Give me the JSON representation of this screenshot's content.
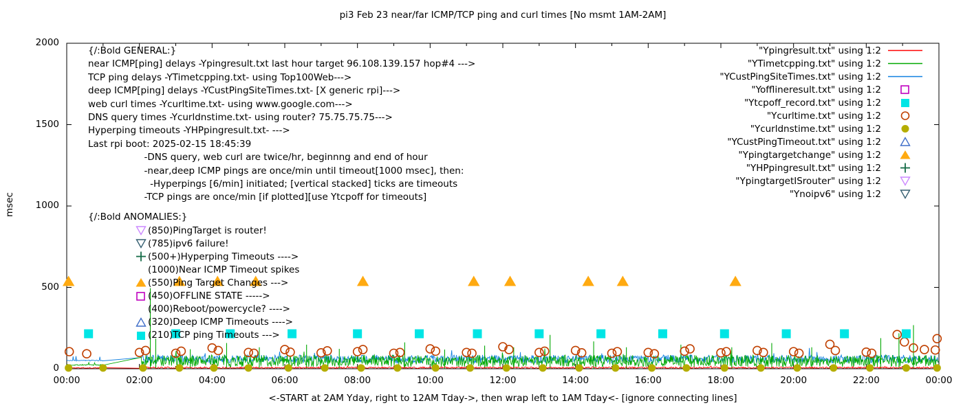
{
  "chart_data": {
    "type": "line",
    "title": "pi3 Feb 23  near/far ICMP/TCP ping and curl times [No msmt 1AM-2AM]",
    "xlabel": "<-START at 2AM Yday, right to 12AM Tday->, then wrap left to 1AM Tday<- [ignore connecting lines]",
    "ylabel": "msec",
    "x_axis": {
      "tick_labels": [
        "00:00",
        "02:00",
        "04:00",
        "06:00",
        "08:00",
        "10:00",
        "12:00",
        "14:00",
        "16:00",
        "18:00",
        "20:00",
        "22:00",
        "00:00"
      ],
      "hours_range": [
        0,
        24
      ],
      "grid": false
    },
    "y_axis": {
      "ticks": [
        "0",
        "500",
        "1000",
        "1500",
        "2000"
      ],
      "tick_values": [
        0,
        500,
        1000,
        1500,
        2000
      ],
      "range": [
        0,
        2000
      ]
    },
    "legend_position": "top-right",
    "legend": [
      {
        "label": "\"Ypingresult.txt\" using 1:2",
        "marker": "line",
        "color": "#ff0000"
      },
      {
        "label": "\"YTimetcpping.txt\" using 1:2",
        "marker": "line",
        "color": "#00a800"
      },
      {
        "label": "\"YCustPingSiteTimes.txt\" using 1:2",
        "marker": "line",
        "color": "#1080e0"
      },
      {
        "label": "\"Yofflineresult.txt\" using 1:2",
        "marker": "square-open",
        "color": "#bf00bf"
      },
      {
        "label": "\"Ytcpoff_record.txt\" using 1:2",
        "marker": "square-filled",
        "color": "#00e5e5"
      },
      {
        "label": "\"Ycurltime.txt\" using 1:2",
        "marker": "circle-open",
        "color": "#c04000"
      },
      {
        "label": "\"Ycurldnstime.txt\" using 1:2",
        "marker": "circle-filled",
        "color": "#b5ad00"
      },
      {
        "label": "\"YCustPingTimeout.txt\" using 1:2",
        "marker": "triangle-up-open",
        "color": "#3f6ec8"
      },
      {
        "label": "\"Ypingtargetchange\" using 1:2",
        "marker": "triangle-up-filled",
        "color": "#ffaa11"
      },
      {
        "label": "\"YHPpingresult.txt\" using 1:2",
        "marker": "plus",
        "color": "#156b47"
      },
      {
        "label": "\"YpingtargetISrouter\" using 1:2",
        "marker": "triangle-down-open",
        "color": "#cc88ff"
      },
      {
        "label": "\"Ynoipv6\" using 1:2",
        "marker": "triangle-down-open",
        "color": "#355f71"
      }
    ],
    "series": [
      {
        "name": "YCustPingSiteTimes.txt",
        "style": "noisy-line",
        "color": "#1080e0",
        "seed": 3,
        "noise": [
          {
            "start": 0,
            "end": 1,
            "min": 48,
            "max": 53
          },
          {
            "start": 2.05,
            "end": 24,
            "min": 35,
            "max": 85
          }
        ]
      },
      {
        "name": "YTimetcpping.txt",
        "style": "noisy-line",
        "color": "#00a800",
        "seed": 7,
        "noise": [
          {
            "start": 0,
            "end": 1,
            "min": 20,
            "max": 27
          },
          {
            "start": 2.05,
            "end": 24,
            "min": 12,
            "max": 85
          }
        ],
        "spikes": [
          [
            2.3,
            495
          ],
          [
            2.45,
            185
          ],
          [
            3.4,
            120
          ],
          [
            4.4,
            158
          ],
          [
            5.3,
            132
          ],
          [
            6.6,
            148
          ],
          [
            7.5,
            122
          ],
          [
            9.3,
            162
          ],
          [
            10.4,
            118
          ],
          [
            11.5,
            142
          ],
          [
            12.3,
            132
          ],
          [
            13.3,
            208
          ],
          [
            14.5,
            168
          ],
          [
            15.4,
            132
          ],
          [
            16.9,
            148
          ],
          [
            18.3,
            132
          ],
          [
            19.4,
            158
          ],
          [
            20.5,
            132
          ],
          [
            22.4,
            188
          ],
          [
            22.9,
            218
          ],
          [
            23.3,
            268
          ]
        ]
      },
      {
        "name": "Ypingresult.txt",
        "style": "noisy-line",
        "color": "#ff0000",
        "seed": 11,
        "noise": [
          {
            "start": 0,
            "end": 1,
            "min": 2,
            "max": 8
          },
          {
            "start": 2.05,
            "end": 24,
            "min": 2,
            "max": 11
          }
        ]
      },
      {
        "name": "Ycurldnstime.txt",
        "style": "points",
        "marker": "circle-filled",
        "color": "#b5ad00",
        "value": 5,
        "hours": [
          0.05,
          1.0,
          2.1,
          3.1,
          4.05,
          5.0,
          6.1,
          7.1,
          8.1,
          9.1,
          10.15,
          11.1,
          12.1,
          13.1,
          14.1,
          15.1,
          16.1,
          17.05,
          18.1,
          19.1,
          20.1,
          21.1,
          22.1,
          23.1,
          23.95
        ]
      },
      {
        "name": "Ycurltime.txt",
        "style": "points",
        "marker": "circle-open",
        "color": "#c04000",
        "points": [
          [
            0.07,
            105
          ],
          [
            0.55,
            92
          ],
          [
            2.0,
            100
          ],
          [
            2.17,
            112
          ],
          [
            3.0,
            95
          ],
          [
            3.15,
            108
          ],
          [
            4.0,
            128
          ],
          [
            4.17,
            112
          ],
          [
            5.0,
            100
          ],
          [
            5.15,
            95
          ],
          [
            6.0,
            118
          ],
          [
            6.15,
            102
          ],
          [
            7.0,
            98
          ],
          [
            7.17,
            110
          ],
          [
            8.0,
            105
          ],
          [
            8.15,
            118
          ],
          [
            9.0,
            95
          ],
          [
            9.17,
            100
          ],
          [
            10.0,
            122
          ],
          [
            10.15,
            108
          ],
          [
            11.0,
            100
          ],
          [
            11.15,
            95
          ],
          [
            12.0,
            135
          ],
          [
            12.17,
            118
          ],
          [
            13.0,
            100
          ],
          [
            13.15,
            108
          ],
          [
            14.0,
            112
          ],
          [
            14.17,
            98
          ],
          [
            15.0,
            95
          ],
          [
            15.15,
            105
          ],
          [
            16.0,
            100
          ],
          [
            16.17,
            92
          ],
          [
            17.0,
            108
          ],
          [
            17.15,
            122
          ],
          [
            18.0,
            98
          ],
          [
            18.15,
            105
          ],
          [
            19.0,
            112
          ],
          [
            19.17,
            100
          ],
          [
            20.0,
            105
          ],
          [
            20.15,
            95
          ],
          [
            21.0,
            150
          ],
          [
            21.15,
            112
          ],
          [
            22.0,
            102
          ],
          [
            22.15,
            95
          ],
          [
            22.85,
            210
          ],
          [
            23.05,
            165
          ],
          [
            23.3,
            128
          ],
          [
            23.6,
            118
          ],
          [
            23.9,
            115
          ],
          [
            23.95,
            185
          ]
        ]
      },
      {
        "name": "Ytcpoff_record.txt",
        "style": "points",
        "marker": "square-filled",
        "color": "#00e5e5",
        "value": 215,
        "hours": [
          0.6,
          3.0,
          4.5,
          6.2,
          8.0,
          9.7,
          11.3,
          13.0,
          14.7,
          16.4,
          18.1,
          19.8,
          21.4,
          23.1
        ]
      },
      {
        "name": "Ypingtargetchange",
        "style": "points",
        "marker": "triangle-up-filled",
        "color": "#ffaa11",
        "value": 535,
        "hours": [
          0.05,
          3.1,
          4.15,
          5.2,
          8.15,
          11.2,
          12.2,
          14.35,
          15.3,
          18.4
        ]
      },
      {
        "name": "Yofflineresult.txt",
        "style": "points",
        "marker": "square-open",
        "color": "#bf00bf",
        "points": []
      },
      {
        "name": "YCustPingTimeout.txt",
        "style": "points",
        "marker": "triangle-up-open",
        "color": "#3f6ec8",
        "points": []
      },
      {
        "name": "YHPpingresult.txt",
        "style": "points",
        "marker": "plus",
        "color": "#156b47",
        "points": []
      },
      {
        "name": "YpingtargetISrouter",
        "style": "points",
        "marker": "triangle-down-open",
        "color": "#cc88ff",
        "points": []
      },
      {
        "name": "Ynoipv6",
        "style": "points",
        "marker": "triangle-down-open",
        "color": "#355f71",
        "points": []
      }
    ],
    "annotations": {
      "general": {
        "lines": [
          "{/:Bold GENERAL:}",
          "near ICMP[ping] delays -Ypingresult.txt last hour target 96.108.139.157 hop#4 --->",
          "TCP ping delays -YTimetcpping.txt- using Top100Web--->",
          "deep ICMP[ping] delays -YCustPingSiteTimes.txt- [X generic rpi]--->",
          "web curl times -Ycurltime.txt- using www.google.com--->",
          "DNS query times -Ycurldnstime.txt- using router? 75.75.75.75--->",
          "Hyperping timeouts -YHPpingresult.txt- --->",
          "Last rpi boot: 2025-02-15 18:45:39",
          "                   -DNS query, web curl are twice/hr, beginnng and end of hour",
          "                   -near,deep ICMP pings are once/min until timeout[1000 msec], then:",
          "                     -Hyperpings [6/min] initiated; [vertical stacked] ticks are timeouts",
          "                   -TCP pings are once/min [if plotted][use Ytcpoff for timeouts]"
        ]
      },
      "anomalies": {
        "header": "{/:Bold ANOMALIES:}",
        "rows": [
          {
            "marker": "triangle-down-open",
            "color": "#cc88ff",
            "text": "(850)PingTarget is router!"
          },
          {
            "marker": "triangle-down-open",
            "color": "#355f71",
            "text": "(785)ipv6 failure!"
          },
          {
            "marker": "plus",
            "color": "#156b47",
            "text": "(500+)Hyperping Timeouts ---->"
          },
          {
            "marker": null,
            "color": null,
            "text": "(1000)Near ICMP Timeout spikes"
          },
          {
            "marker": "triangle-up-filled",
            "color": "#ffaa11",
            "text": "(550)Ping Target Changes --->"
          },
          {
            "marker": "square-open",
            "color": "#bf00bf",
            "text": "(450)OFFLINE STATE ----->"
          },
          {
            "marker": null,
            "color": null,
            "text": "(400)Reboot/powercycle? ---->"
          },
          {
            "marker": "triangle-up-open",
            "color": "#3f6ec8",
            "text": "(320)Deep ICMP Timeouts ---->"
          },
          {
            "marker": "square-filled",
            "color": "#00e5e5",
            "text": "(210)TCP ping Timeouts --->"
          }
        ]
      }
    }
  }
}
